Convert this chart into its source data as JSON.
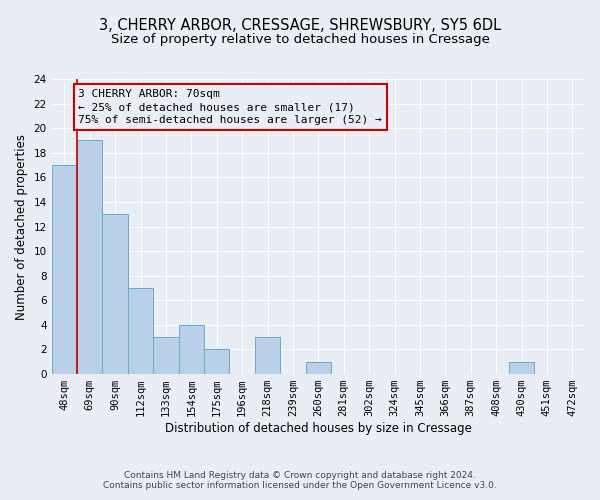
{
  "title1": "3, CHERRY ARBOR, CRESSAGE, SHREWSBURY, SY5 6DL",
  "title2": "Size of property relative to detached houses in Cressage",
  "xlabel": "Distribution of detached houses by size in Cressage",
  "ylabel": "Number of detached properties",
  "footnote1": "Contains HM Land Registry data © Crown copyright and database right 2024.",
  "footnote2": "Contains public sector information licensed under the Open Government Licence v3.0.",
  "bar_labels": [
    "48sqm",
    "69sqm",
    "90sqm",
    "112sqm",
    "133sqm",
    "154sqm",
    "175sqm",
    "196sqm",
    "218sqm",
    "239sqm",
    "260sqm",
    "281sqm",
    "302sqm",
    "324sqm",
    "345sqm",
    "366sqm",
    "387sqm",
    "408sqm",
    "430sqm",
    "451sqm",
    "472sqm"
  ],
  "bar_values": [
    17,
    19,
    13,
    7,
    3,
    4,
    2,
    0,
    3,
    0,
    1,
    0,
    0,
    0,
    0,
    0,
    0,
    0,
    1,
    0,
    0
  ],
  "bar_color": "#b8d0e8",
  "bar_edge_color": "#6fa8c8",
  "annotation_line1": "3 CHERRY ARBOR: 70sqm",
  "annotation_line2": "← 25% of detached houses are smaller (17)",
  "annotation_line3": "75% of semi-detached houses are larger (52) →",
  "annotation_box_color": "#cc0000",
  "vline_color": "#cc0000",
  "vline_x_index": 1,
  "ylim": [
    0,
    24
  ],
  "yticks": [
    0,
    2,
    4,
    6,
    8,
    10,
    12,
    14,
    16,
    18,
    20,
    22,
    24
  ],
  "background_color": "#e8eef4",
  "grid_color": "#ffffff",
  "title1_fontsize": 10.5,
  "title2_fontsize": 9.5,
  "axis_label_fontsize": 8.5,
  "tick_fontsize": 7.5,
  "footnote_fontsize": 6.5,
  "annotation_fontsize": 8
}
